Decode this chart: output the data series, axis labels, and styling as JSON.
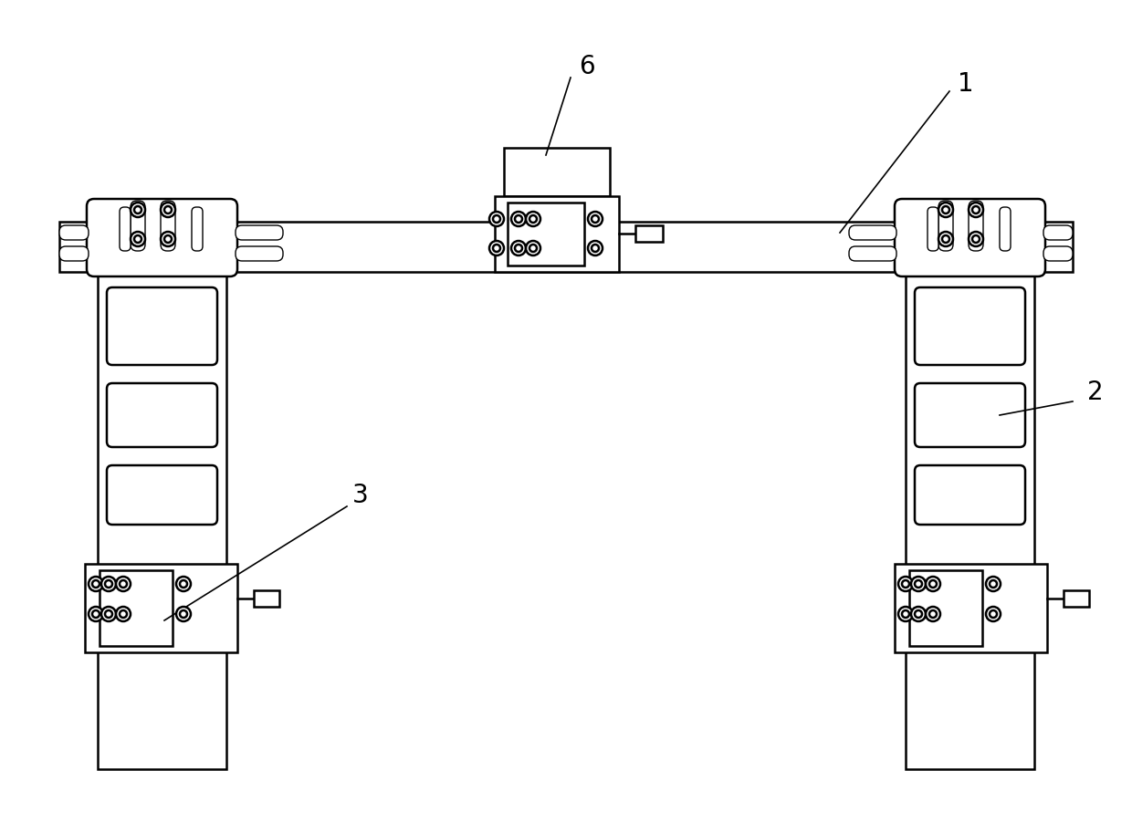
{
  "bg_color": "#ffffff",
  "line_color": "#000000",
  "lw": 1.8,
  "tlw": 1.0,
  "fig_width": 12.4,
  "fig_height": 9.13,
  "label_fontsize": 20
}
